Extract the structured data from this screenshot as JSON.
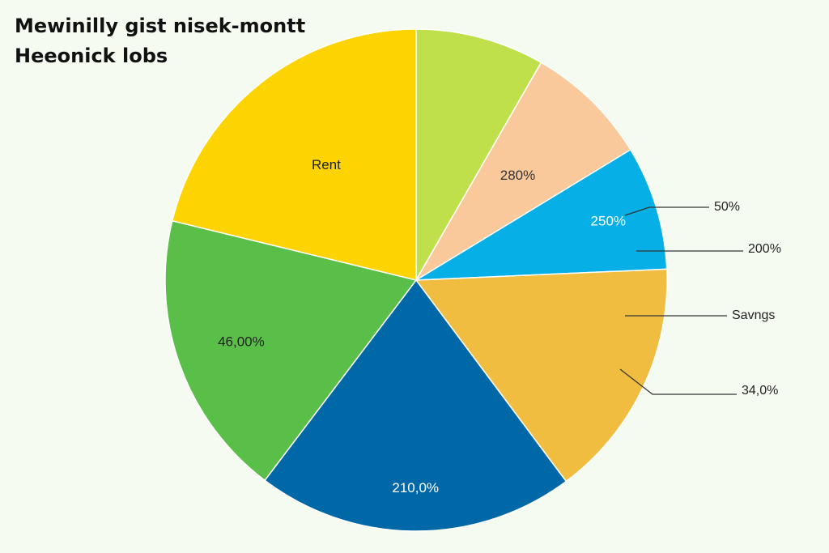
{
  "title_lines": [
    "Mewinilly gist nisek-montt",
    "Heeonick lobs"
  ],
  "chart_data": {
    "type": "pie",
    "title": "Mewinilly gist nisek-montt Heeonick lobs",
    "start_angle_deg": 0,
    "direction": "clockwise",
    "slices": [
      {
        "value": 8.3,
        "color": "#bfe04b",
        "label": ""
      },
      {
        "value": 8.0,
        "color": "#f9c99b",
        "label": "280%"
      },
      {
        "value": 8.0,
        "color": "#06b0e6",
        "label": "250%"
      },
      {
        "value": 15.5,
        "color": "#f0bd40",
        "label": ""
      },
      {
        "value": 20.5,
        "color": "#0168a8",
        "label": "210,0%"
      },
      {
        "value": 18.5,
        "color": "#5abf48",
        "label": "46,00%"
      },
      {
        "value": 21.2,
        "color": "#fdd302",
        "label": "Rent"
      }
    ],
    "callouts": [
      {
        "label": "50%"
      },
      {
        "label": "200%"
      },
      {
        "label": "Savngs"
      },
      {
        "label": "34,0%"
      }
    ]
  }
}
